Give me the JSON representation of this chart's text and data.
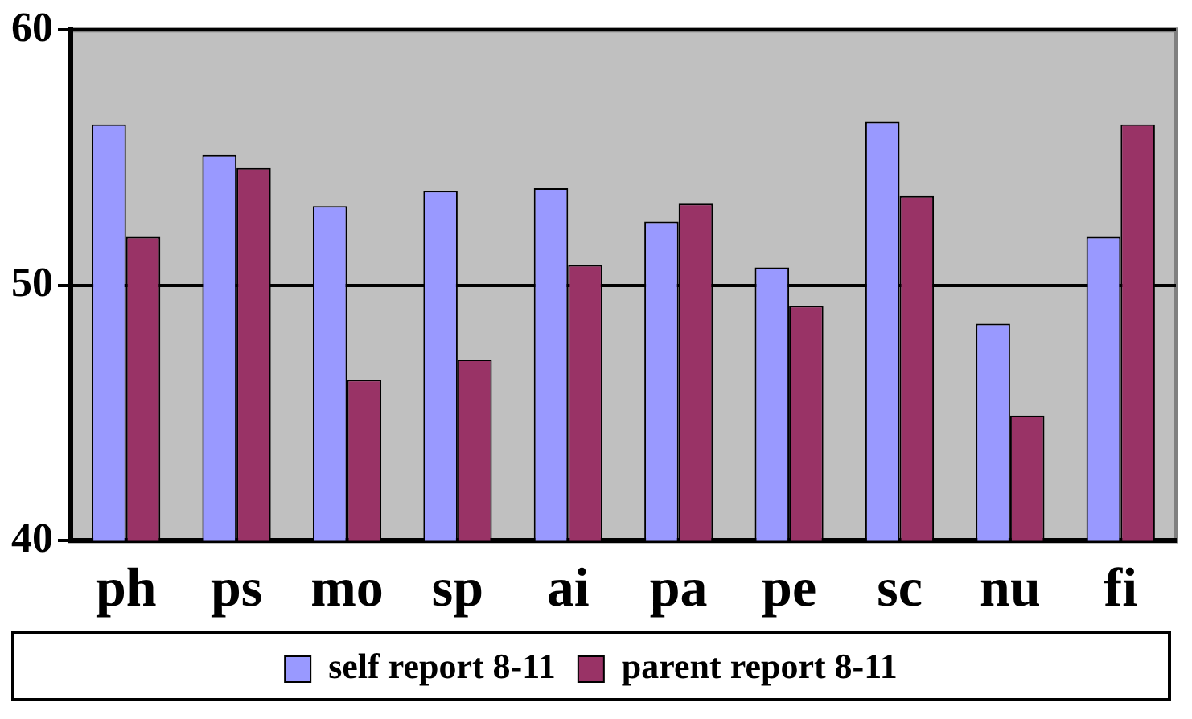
{
  "chart_data": {
    "type": "bar",
    "categories": [
      "ph",
      "ps",
      "mo",
      "sp",
      "ai",
      "pa",
      "pe",
      "sc",
      "nu",
      "fi"
    ],
    "series": [
      {
        "name": "self report 8-11",
        "color": "#9999ff",
        "values": [
          56.3,
          55.1,
          53.1,
          53.7,
          53.8,
          52.5,
          50.7,
          56.4,
          48.5,
          51.9
        ]
      },
      {
        "name": "parent report 8-11",
        "color": "#993366",
        "values": [
          51.9,
          54.6,
          46.3,
          47.1,
          50.8,
          53.2,
          49.2,
          53.5,
          44.9,
          56.3
        ]
      }
    ],
    "ylim": [
      40,
      60
    ],
    "yticks": [
      40,
      50,
      60
    ],
    "grid": "y",
    "legend": "bottom"
  }
}
